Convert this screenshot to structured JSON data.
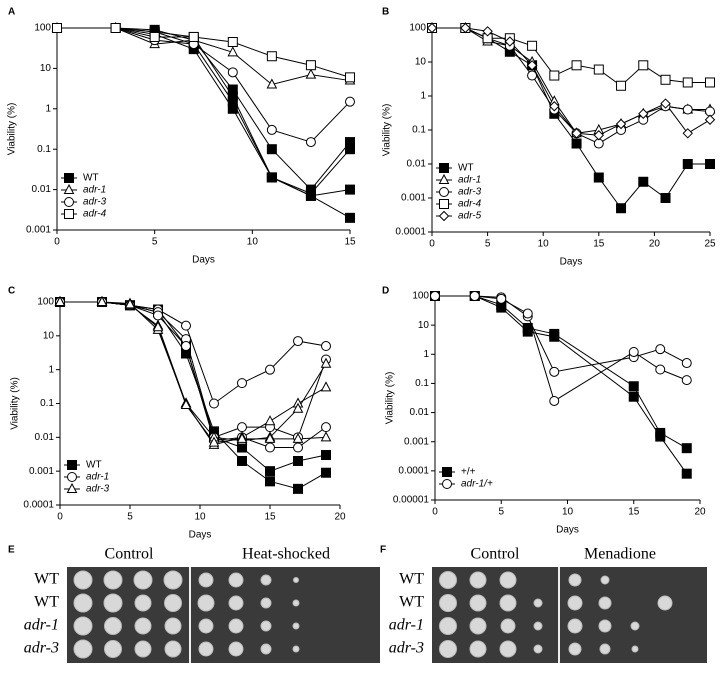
{
  "chart_data": [
    {
      "type": "line",
      "panel": "A",
      "xlabel": "Days",
      "ylabel": "Viability (%)",
      "log_y": true,
      "legend": "lower left",
      "x": [
        0,
        3,
        5,
        7,
        9,
        11,
        13,
        15
      ],
      "xlim": [
        0,
        15
      ],
      "xticks": [
        0,
        5,
        10,
        15
      ],
      "ylim": [
        0.001,
        100
      ],
      "yticks": [
        0.001,
        0.01,
        0.1,
        1,
        10,
        100
      ],
      "series": [
        {
          "name": "WT",
          "marker": "square-filled",
          "color": "#000000",
          "lines": [
            [
              100,
              100,
              80,
              40,
              1.5,
              0.02,
              0.007,
              0.01
            ],
            [
              100,
              100,
              70,
              30,
              1,
              0.02,
              0.008,
              0.1
            ],
            [
              100,
              100,
              90,
              50,
              3,
              0.1,
              0.01,
              0.15
            ],
            [
              100,
              100,
              80,
              60,
              2,
              0.02,
              0.007,
              0.002
            ]
          ]
        },
        {
          "name": "adr-1",
          "marker": "triangle",
          "color": "#000000",
          "lines": [
            [
              100,
              100,
              40,
              50,
              25,
              4,
              7,
              5
            ]
          ]
        },
        {
          "name": "adr-3",
          "marker": "circle",
          "color": "#000000",
          "lines": [
            [
              100,
              100,
              50,
              40,
              8,
              0.3,
              0.15,
              1.5
            ]
          ]
        },
        {
          "name": "adr-4",
          "marker": "square",
          "color": "#000000",
          "lines": [
            [
              100,
              100,
              60,
              60,
              45,
              20,
              12,
              6
            ]
          ]
        }
      ]
    },
    {
      "type": "line",
      "panel": "B",
      "xlabel": "Days",
      "ylabel": "Viability (%)",
      "log_y": true,
      "legend": "lower left",
      "x": [
        0,
        3,
        5,
        7,
        9,
        11,
        13,
        15,
        17,
        19,
        21,
        23,
        25
      ],
      "xlim": [
        0,
        25
      ],
      "xticks": [
        0,
        5,
        10,
        15,
        20,
        25
      ],
      "ylim": [
        0.0001,
        100
      ],
      "yticks": [
        0.0001,
        0.001,
        0.01,
        0.1,
        1,
        10,
        100
      ],
      "series": [
        {
          "name": "WT",
          "marker": "square-filled",
          "color": "#000000",
          "lines": [
            [
              100,
              100,
              50,
              20,
              8,
              0.3,
              0.04,
              0.004,
              0.0005,
              0.003,
              0.001,
              0.01,
              0.01
            ]
          ]
        },
        {
          "name": "adr-1",
          "marker": "triangle",
          "color": "#000000",
          "lines": [
            [
              100,
              100,
              40,
              30,
              10,
              0.7,
              0.08,
              0.1,
              0.15,
              0.3,
              0.5,
              0.4,
              0.4
            ]
          ]
        },
        {
          "name": "adr-3",
          "marker": "circle",
          "color": "#000000",
          "lines": [
            [
              100,
              100,
              50,
              30,
              4,
              0.4,
              0.08,
              0.04,
              0.1,
              0.2,
              0.5,
              0.4,
              0.35
            ]
          ]
        },
        {
          "name": "adr-4",
          "marker": "square",
          "color": "#000000",
          "lines": [
            [
              100,
              100,
              50,
              50,
              30,
              4,
              8,
              6,
              2,
              8,
              3,
              2.5,
              2.5
            ]
          ]
        },
        {
          "name": "adr-5",
          "marker": "diamond",
          "color": "#000000",
          "lines": [
            [
              100,
              100,
              80,
              40,
              8,
              0.5,
              0.08,
              0.07,
              0.15,
              0.3,
              0.6,
              0.08,
              0.2
            ]
          ]
        }
      ]
    },
    {
      "type": "line",
      "panel": "C",
      "xlabel": "Days",
      "ylabel": "Viability (%)",
      "log_y": true,
      "legend": "lower left",
      "x": [
        0,
        3,
        5,
        7,
        9,
        11,
        13,
        15,
        17,
        19
      ],
      "xlim": [
        0,
        20
      ],
      "xticks": [
        0,
        5,
        10,
        15,
        20
      ],
      "ylim": [
        0.0001,
        100
      ],
      "yticks": [
        0.0001,
        0.001,
        0.01,
        0.1,
        1,
        10,
        100
      ],
      "series": [
        {
          "name": "WT",
          "marker": "square-filled",
          "color": "#000000",
          "lines": [
            [
              100,
              100,
              80,
              60,
              5,
              0.01,
              0.005,
              0.001,
              0.002,
              0.003
            ],
            [
              100,
              100,
              80,
              50,
              3,
              0.015,
              0.002,
              0.0005,
              0.0003,
              0.0009
            ]
          ]
        },
        {
          "name": "adr-1",
          "marker": "circle",
          "color": "#000000",
          "lines": [
            [
              100,
              100,
              80,
              60,
              20,
              0.1,
              0.4,
              1,
              7,
              5
            ],
            [
              100,
              100,
              80,
              50,
              8,
              0.01,
              0.02,
              0.02,
              0.01,
              2
            ],
            [
              100,
              100,
              80,
              40,
              5,
              0.008,
              0.01,
              0.005,
              0.005,
              0.02
            ]
          ]
        },
        {
          "name": "adr-3",
          "marker": "triangle",
          "color": "#000000",
          "lines": [
            [
              100,
              100,
              90,
              15,
              0.1,
              0.006,
              0.01,
              0.03,
              0.1,
              0.3
            ],
            [
              100,
              100,
              80,
              20,
              0.1,
              0.01,
              0.008,
              0.01,
              0.07,
              1.5
            ],
            [
              100,
              100,
              85,
              18,
              0.09,
              0.007,
              0.009,
              0.009,
              0.009,
              0.01
            ]
          ]
        }
      ]
    },
    {
      "type": "line",
      "panel": "D",
      "xlabel": "Days",
      "ylabel": "Viability (%)",
      "log_y": true,
      "legend": "lower left",
      "x": [
        0,
        3,
        5,
        7,
        9,
        15,
        17,
        19
      ],
      "xlim": [
        0,
        20
      ],
      "xticks": [
        0,
        5,
        10,
        15,
        20
      ],
      "ylim": [
        1e-05,
        100
      ],
      "yticks": [
        1e-05,
        0.0001,
        0.001,
        0.01,
        0.1,
        1,
        10,
        100
      ],
      "series": [
        {
          "name": "+/+",
          "marker": "square-filled",
          "color": "#000000",
          "lines": [
            [
              100,
              100,
              50,
              8,
              5,
              0.08,
              0.002,
              0.0006
            ],
            [
              100,
              100,
              40,
              6,
              4,
              0.035,
              0.0015,
              8e-05
            ]
          ]
        },
        {
          "name": "adr-1/+",
          "marker": "circle",
          "color": "#000000",
          "lines": [
            [
              100,
              100,
              90,
              20,
              0.25,
              0.8,
              1.5,
              0.5
            ],
            [
              100,
              100,
              80,
              25,
              0.025,
              1.2,
              0.3,
              0.13
            ]
          ]
        }
      ]
    }
  ],
  "plates": [
    {
      "panel": "E",
      "columns": [
        "Control",
        "Heat-shocked"
      ],
      "rows": [
        "WT",
        "WT",
        "adr-1",
        "adr-3"
      ]
    },
    {
      "panel": "F",
      "columns": [
        "Control",
        "Menadione"
      ],
      "rows": [
        "WT",
        "WT",
        "adr-1",
        "adr-3"
      ]
    }
  ]
}
